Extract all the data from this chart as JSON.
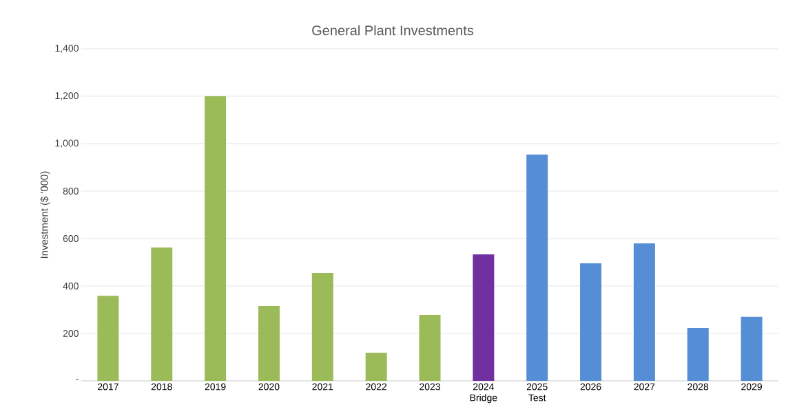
{
  "chart_data": {
    "type": "bar",
    "title": "General Plant Investments",
    "ylabel": "Investment ($ '000)",
    "categories": [
      "2017",
      "2018",
      "2019",
      "2020",
      "2021",
      "2022",
      "2023",
      "2024 Bridge",
      "2025 Test",
      "2026",
      "2027",
      "2028",
      "2029"
    ],
    "values": [
      359,
      562,
      1200,
      316,
      455,
      119,
      278,
      533,
      954,
      496,
      580,
      223,
      270
    ],
    "colors": [
      "#9bbb59",
      "#9bbb59",
      "#9bbb59",
      "#9bbb59",
      "#9bbb59",
      "#9bbb59",
      "#9bbb59",
      "#7030a0",
      "#558ed5",
      "#558ed5",
      "#558ed5",
      "#558ed5",
      "#558ed5"
    ],
    "ylim": [
      0,
      1400
    ],
    "yticks": [
      {
        "value": 0,
        "label": "-"
      },
      {
        "value": 200,
        "label": "200"
      },
      {
        "value": 400,
        "label": "400"
      },
      {
        "value": 600,
        "label": "600"
      },
      {
        "value": 800,
        "label": "800"
      },
      {
        "value": 1000,
        "label": "1,000"
      },
      {
        "value": 1200,
        "label": "1,200"
      },
      {
        "value": 1400,
        "label": "1,400"
      }
    ],
    "grid": "y"
  }
}
